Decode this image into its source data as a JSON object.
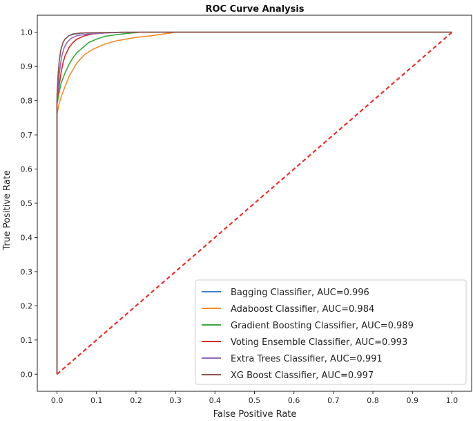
{
  "chart_data": {
    "type": "line",
    "title": "ROC Curve Analysis",
    "xlabel": "False Positive Rate",
    "ylabel": "True Positive Rate",
    "xlim": [
      -0.05,
      1.05
    ],
    "ylim": [
      -0.05,
      1.05
    ],
    "xticks": [
      "0.0",
      "0.1",
      "0.2",
      "0.3",
      "0.4",
      "0.5",
      "0.6",
      "0.7",
      "0.8",
      "0.9",
      "1.0"
    ],
    "yticks": [
      "0.0",
      "0.1",
      "0.2",
      "0.3",
      "0.4",
      "0.5",
      "0.6",
      "0.7",
      "0.8",
      "0.9",
      "1.0"
    ],
    "xtick_values": [
      0,
      0.1,
      0.2,
      0.3,
      0.4,
      0.5,
      0.6,
      0.7,
      0.8,
      0.9,
      1.0
    ],
    "ytick_values": [
      0,
      0.1,
      0.2,
      0.3,
      0.4,
      0.5,
      0.6,
      0.7,
      0.8,
      0.9,
      1.0
    ],
    "grid": false,
    "legend_position": "bottom-right",
    "diagonal": {
      "x": [
        0,
        1
      ],
      "y": [
        0,
        1
      ],
      "color": "#e8302a",
      "style": "dashed"
    },
    "series": [
      {
        "name": "Bagging Classifier, AUC=0.996",
        "color": "#3b84c4",
        "x": [
          0,
          0,
          0.003,
          0.006,
          0.01,
          0.015,
          0.02,
          0.03,
          0.045,
          0.07,
          0.12,
          0.2,
          1.0
        ],
        "y": [
          0,
          0.8,
          0.88,
          0.92,
          0.95,
          0.97,
          0.98,
          0.99,
          0.995,
          0.998,
          0.999,
          1.0,
          1.0
        ]
      },
      {
        "name": "Adaboost Classifier, AUC=0.984",
        "color": "#f28e2b",
        "x": [
          0,
          0,
          0.005,
          0.01,
          0.02,
          0.03,
          0.04,
          0.05,
          0.07,
          0.09,
          0.12,
          0.15,
          0.2,
          0.24,
          0.27,
          0.3,
          1.0
        ],
        "y": [
          0,
          0.76,
          0.79,
          0.81,
          0.84,
          0.87,
          0.89,
          0.91,
          0.935,
          0.95,
          0.965,
          0.975,
          0.985,
          0.99,
          0.995,
          1.0,
          1.0
        ]
      },
      {
        "name": "Gradient Boosting Classifier, AUC=0.989",
        "color": "#3ba63b",
        "x": [
          0,
          0,
          0.005,
          0.01,
          0.02,
          0.03,
          0.04,
          0.05,
          0.065,
          0.08,
          0.1,
          0.12,
          0.15,
          0.18,
          0.21,
          1.0
        ],
        "y": [
          0,
          0.79,
          0.82,
          0.85,
          0.88,
          0.905,
          0.925,
          0.94,
          0.955,
          0.97,
          0.98,
          0.988,
          0.993,
          0.997,
          1.0,
          1.0
        ]
      },
      {
        "name": "Voting Ensemble Classifier, AUC=0.993",
        "color": "#d62728",
        "x": [
          0,
          0,
          0.005,
          0.01,
          0.015,
          0.02,
          0.03,
          0.04,
          0.05,
          0.07,
          0.09,
          0.12,
          0.16,
          1.0
        ],
        "y": [
          0,
          0.8,
          0.84,
          0.88,
          0.91,
          0.93,
          0.955,
          0.97,
          0.98,
          0.99,
          0.995,
          0.998,
          1.0,
          1.0
        ]
      },
      {
        "name": "Extra Trees Classifier, AUC=0.991",
        "color": "#9467bd",
        "x": [
          0,
          0,
          0.004,
          0.008,
          0.012,
          0.018,
          0.025,
          0.035,
          0.05,
          0.08,
          0.12,
          0.17,
          1.0
        ],
        "y": [
          0,
          0.8,
          0.86,
          0.9,
          0.93,
          0.955,
          0.97,
          0.982,
          0.99,
          0.995,
          0.998,
          1.0,
          1.0
        ]
      },
      {
        "name": "XG Boost Classifier, AUC=0.997",
        "color": "#8c564b",
        "x": [
          0,
          0,
          0.003,
          0.006,
          0.01,
          0.015,
          0.02,
          0.03,
          0.04,
          0.06,
          0.1,
          0.16,
          1.0
        ],
        "y": [
          0,
          0.82,
          0.88,
          0.92,
          0.95,
          0.97,
          0.98,
          0.99,
          0.995,
          0.998,
          0.999,
          1.0,
          1.0
        ]
      }
    ]
  }
}
